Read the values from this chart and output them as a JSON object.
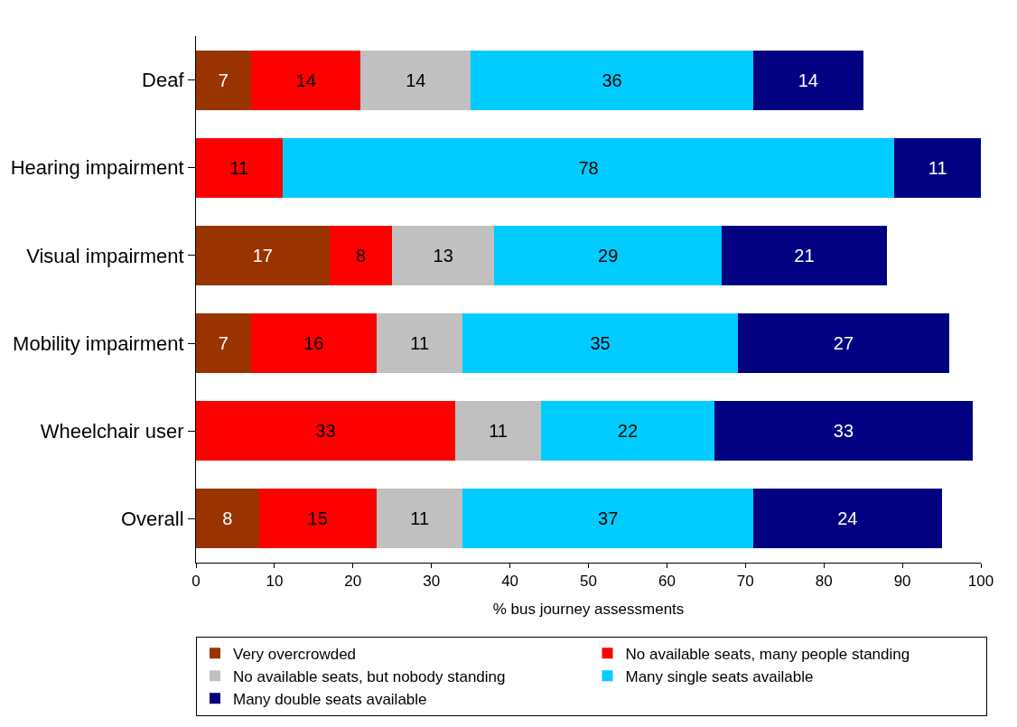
{
  "chart_data": {
    "type": "bar",
    "orientation": "horizontal",
    "stacked": true,
    "xlabel": "% bus journey assessments",
    "categories": [
      "Deaf",
      "Hearing impairment",
      "Visual impairment",
      "Mobility impairment",
      "Wheelchair user",
      "Overall"
    ],
    "series": [
      {
        "name": "Very overcrowded",
        "color": "#993300",
        "values": [
          7,
          null,
          17,
          7,
          null,
          8
        ]
      },
      {
        "name": "No available seats, many people standing",
        "color": "#ff0000",
        "values": [
          14,
          11,
          8,
          16,
          33,
          15
        ]
      },
      {
        "name": "No available seats, but nobody standing",
        "color": "#c0c0c0",
        "values": [
          14,
          null,
          13,
          11,
          11,
          11
        ]
      },
      {
        "name": "Many single seats available",
        "color": "#00ccff",
        "values": [
          36,
          78,
          29,
          35,
          22,
          37
        ]
      },
      {
        "name": "Many double seats available",
        "color": "#000080",
        "values": [
          14,
          11,
          21,
          27,
          33,
          24
        ]
      }
    ],
    "xlim": [
      0,
      100
    ],
    "xticks": [
      0,
      10,
      20,
      30,
      40,
      50,
      60,
      70,
      80,
      90,
      100
    ],
    "data_labels": true,
    "legend": "bottom"
  }
}
